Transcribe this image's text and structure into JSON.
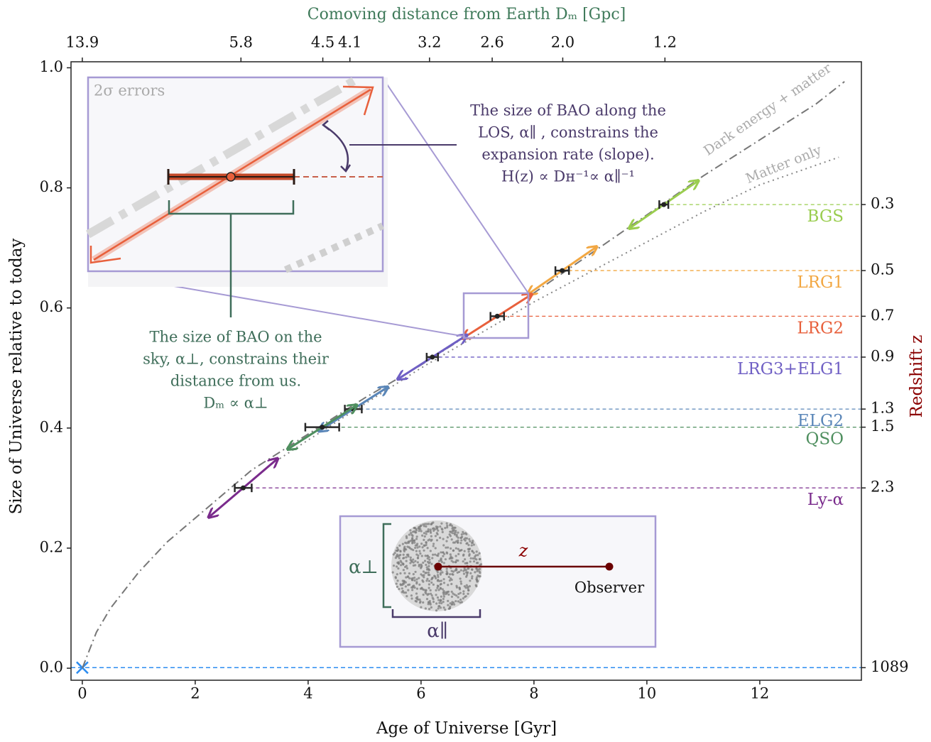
{
  "chart_data": {
    "type": "line",
    "xlabel": "Age of Universe [Gyr]",
    "ylabel": "Size of Universe relative to today",
    "y2label": "Redshift z",
    "x2label": "Comoving distance from Earth Dₘ [Gpc]",
    "xlim": [
      -0.2,
      13.8
    ],
    "xticks": [
      0,
      2,
      4,
      6,
      8,
      10,
      12
    ],
    "ylim": [
      -0.02,
      1.01
    ],
    "yticks": [
      {
        "value": 0,
        "label": "0.0"
      },
      0.2,
      0.4,
      0.6,
      0.8,
      {
        "value": 1,
        "label": "1.0"
      }
    ],
    "y2ticks": [
      {
        "value": 0.295,
        "label": "0.3"
      },
      {
        "value": 0.51,
        "label": "0.5"
      },
      {
        "value": 0.706,
        "label": "0.7"
      },
      {
        "value": 0.93,
        "label": "0.9"
      },
      {
        "value": 1.317,
        "label": "1.3"
      },
      {
        "value": 1.491,
        "label": "1.5"
      },
      {
        "value": 2.33,
        "label": "2.3"
      },
      1089
    ],
    "x2ticks": [
      13.9,
      5.8,
      4.5,
      4.1,
      3.2,
      2.6,
      {
        "value": 2,
        "label": "2.0"
      },
      1.2
    ],
    "x2tick_ages": [
      0,
      2.81,
      4.26,
      4.74,
      6.15,
      7.26,
      8.51,
      10.32
    ],
    "series": [
      {
        "name": "Dark energy + matter",
        "color": "#777777",
        "style": "dashdot",
        "x": [
          0,
          0.25,
          0.5,
          1,
          1.5,
          2,
          3,
          4,
          5,
          6,
          7,
          8,
          9,
          10,
          11,
          12,
          13,
          13.5
        ],
        "values": [
          0,
          0.06,
          0.1,
          0.16,
          0.21,
          0.25,
          0.33,
          0.39,
          0.45,
          0.505,
          0.565,
          0.625,
          0.69,
          0.755,
          0.82,
          0.88,
          0.94,
          0.977
        ]
      },
      {
        "name": "Matter only",
        "color": "#888888",
        "style": "dotted",
        "x": [
          3.35,
          4,
          5,
          6,
          7,
          8,
          9,
          10,
          11,
          12,
          13.4
        ],
        "values": [
          0.34,
          0.38,
          0.44,
          0.5,
          0.555,
          0.61,
          0.66,
          0.71,
          0.76,
          0.805,
          0.851
        ]
      }
    ],
    "tracers": [
      {
        "name": "BGS",
        "color": "#9acd4f",
        "z": 0.295,
        "age": 10.3,
        "age_err": 0.08
      },
      {
        "name": "LRG1",
        "color": "#f2a742",
        "z": 0.51,
        "age": 8.5,
        "age_err": 0.12
      },
      {
        "name": "LRG2",
        "color": "#e8603c",
        "z": 0.706,
        "age": 7.35,
        "age_err": 0.12
      },
      {
        "name": "LRG3+ELG1",
        "color": "#6f5fc4",
        "z": 0.93,
        "age": 6.2,
        "age_err": 0.1
      },
      {
        "name": "ELG2",
        "color": "#5a86b8",
        "z": 1.317,
        "age": 4.8,
        "age_err": 0.15
      },
      {
        "name": "QSO",
        "color": "#4f8f5f",
        "z": 1.491,
        "age": 4.25,
        "age_err": 0.3
      },
      {
        "name": "Ly-α",
        "color": "#7a2b8c",
        "z": 2.33,
        "age": 2.85,
        "age_err": 0.15
      }
    ],
    "cmb": {
      "z": 1089,
      "age": 0,
      "color": "#2d8cf0"
    },
    "annotations": {
      "inset_label": "2σ errors",
      "los_text": [
        "The size of BAO along the",
        "LOS, α∥ , constrains the",
        "expansion rate (slope).",
        "H(z) ∝ Dʜ⁻¹∝ α∥⁻¹"
      ],
      "sky_text": [
        "The size of BAO on the",
        "sky, α⊥, constrains their",
        "distance from us.",
        "Dₘ ∝ α⊥"
      ],
      "alpha_perp": "α⊥",
      "alpha_par": "α∥",
      "z_label": "z",
      "observer": "Observer"
    }
  }
}
